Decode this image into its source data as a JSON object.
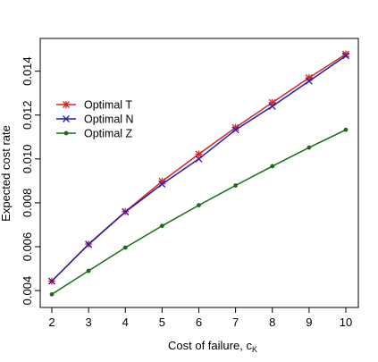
{
  "chart_data": {
    "type": "line",
    "title": "",
    "xlabel_main": "Cost of failure, c",
    "xlabel_sub": "K",
    "ylabel": "Expected cost rate",
    "x": [
      2,
      3,
      4,
      5,
      6,
      7,
      8,
      9,
      10
    ],
    "xlim": [
      2,
      10
    ],
    "ylim": [
      0.0035,
      0.0153
    ],
    "xticks": [
      "2",
      "3",
      "4",
      "5",
      "6",
      "7",
      "8",
      "9",
      "10"
    ],
    "yticks": [
      {
        "value": 0.004,
        "label": "0.004"
      },
      {
        "value": 0.006,
        "label": "0.006"
      },
      {
        "value": 0.008,
        "label": "0.008"
      },
      {
        "value": 0.01,
        "label": "0.010"
      },
      {
        "value": 0.012,
        "label": "0.012"
      },
      {
        "value": 0.014,
        "label": "0.014"
      }
    ],
    "grid": false,
    "legend_position": "top-left",
    "series": [
      {
        "name": "Optimal T",
        "color": "#d62728",
        "marker": "asterisk",
        "values": [
          0.00443,
          0.00612,
          0.0076,
          0.00898,
          0.01022,
          0.01143,
          0.01257,
          0.0137,
          0.01478
        ]
      },
      {
        "name": "Optimal N",
        "color": "#1f1fb4",
        "marker": "cross",
        "values": [
          0.00443,
          0.0061,
          0.00758,
          0.00885,
          0.01,
          0.01133,
          0.0124,
          0.01355,
          0.0147
        ]
      },
      {
        "name": "Optimal Z",
        "color": "#1a6b1a",
        "marker": "dot",
        "values": [
          0.00383,
          0.0049,
          0.00596,
          0.00695,
          0.00789,
          0.00879,
          0.00967,
          0.01052,
          0.01133
        ]
      }
    ]
  }
}
